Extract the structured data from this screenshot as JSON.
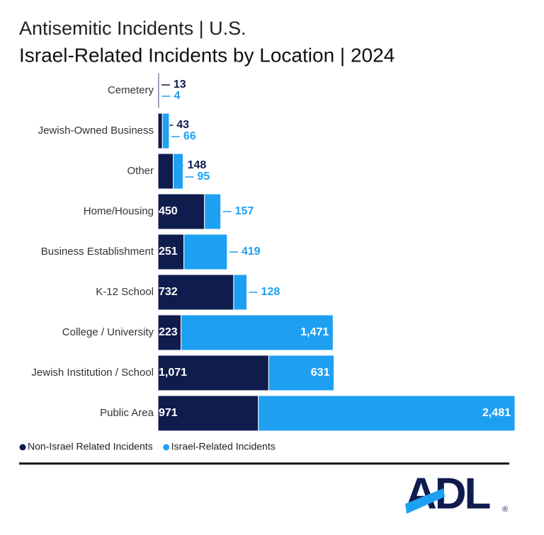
{
  "chart_data": {
    "type": "stacked-hbar",
    "title": "Antisemitic Incidents | U.S.",
    "subtitle": "Israel-Related Incidents by Location | 2024",
    "categories": [
      "Cemetery",
      "Jewish-Owned Business",
      "Other",
      "Home/Housing",
      "Business Establishment",
      "K-12 School",
      "College / University",
      "Jewish Institution / School",
      "Public Area"
    ],
    "series": [
      {
        "name": "Non-Israel Related Incidents",
        "color": "#0f1c4e",
        "values": [
          13,
          43,
          148,
          450,
          251,
          732,
          223,
          1071,
          971
        ],
        "value_labels": [
          "13",
          "43",
          "148",
          "450",
          "251",
          "732",
          "223",
          "1,071",
          "971"
        ]
      },
      {
        "name": "Israel-Related Incidents",
        "color": "#1ea0f2",
        "values": [
          4,
          66,
          95,
          157,
          419,
          128,
          1471,
          631,
          2481
        ],
        "value_labels": [
          "4",
          "66",
          "95",
          "157",
          "419",
          "128",
          "1,471",
          "631",
          "2,481"
        ]
      }
    ],
    "logo": {
      "text": "ADL",
      "mark": "®"
    }
  }
}
